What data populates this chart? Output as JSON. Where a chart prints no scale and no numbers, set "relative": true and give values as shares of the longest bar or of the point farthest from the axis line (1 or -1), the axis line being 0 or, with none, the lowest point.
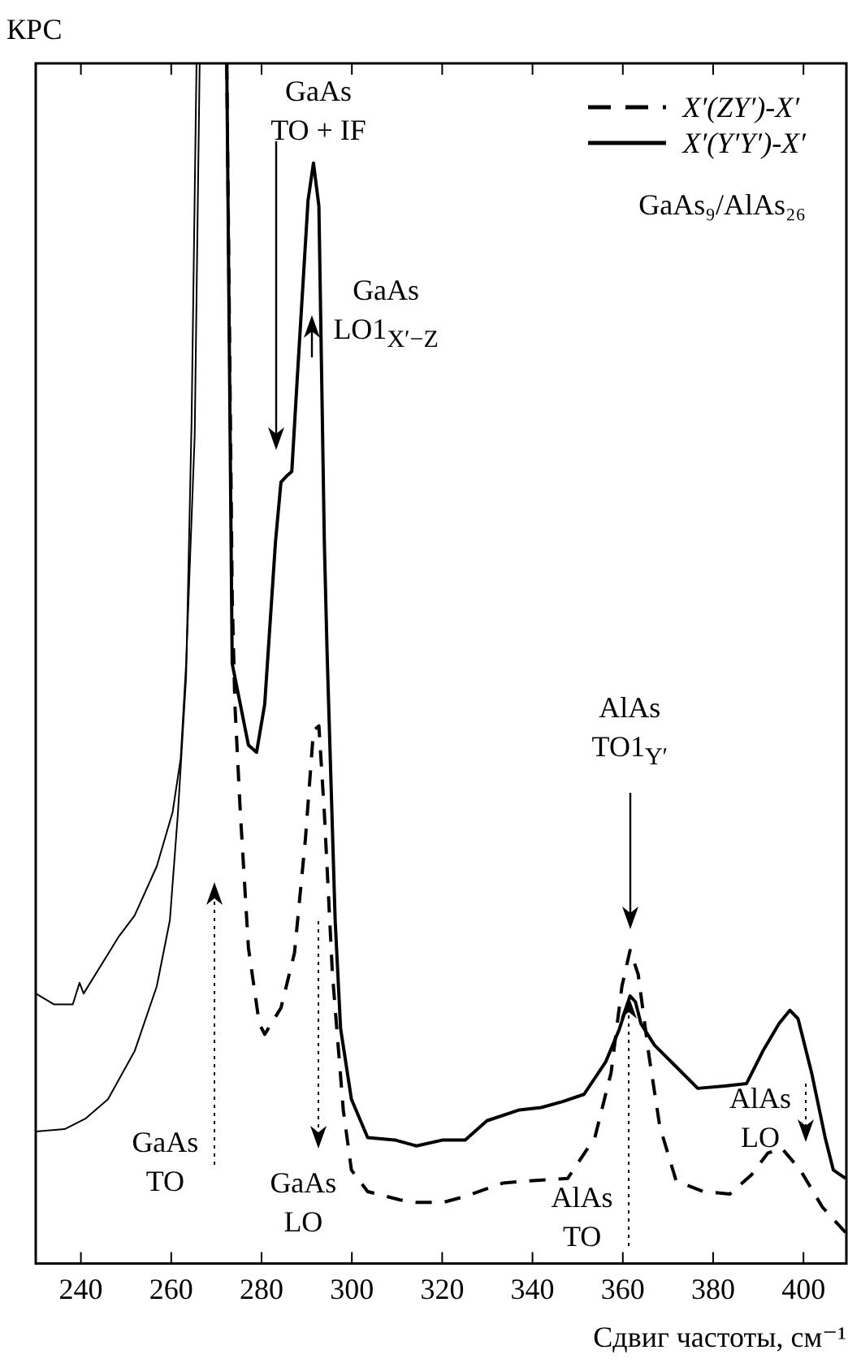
{
  "chart_data": {
    "type": "line",
    "relative": true,
    "xlabel": "Сдвиг частоты, см⁻¹",
    "ylabel": "КРС",
    "xlim": [
      230,
      409.5
    ],
    "xticks": [
      240,
      260,
      280,
      300,
      320,
      340,
      360,
      380,
      400
    ],
    "grid": false,
    "legend": "top right",
    "marker": "none",
    "series": [
      {
        "name": "X′(ZY′)-X′",
        "color": "#000000",
        "line_style": "dashed",
        "x": [
          272.3,
          273.5,
          274.1,
          275.3,
          277.1,
          279.5,
          280.7,
          284.3,
          287.3,
          289.7,
          291.5,
          292.7,
          293.9,
          295.7,
          298.1,
          299.9,
          303.5,
          310.7,
          314.3,
          320.2,
          325.1,
          333.4,
          339.4,
          347.8,
          353.8,
          357.4,
          359.8,
          361.6,
          363.4,
          365.8,
          368.2,
          371.8,
          377.8,
          383.7,
          388.5,
          392.1,
          395.2,
          399.3,
          404.2,
          409.3
        ],
        "values": [
          1.0,
          0.556,
          0.466,
          0.376,
          0.263,
          0.2,
          0.191,
          0.213,
          0.259,
          0.353,
          0.444,
          0.448,
          0.376,
          0.241,
          0.128,
          0.078,
          0.06,
          0.053,
          0.051,
          0.051,
          0.056,
          0.067,
          0.069,
          0.071,
          0.105,
          0.159,
          0.231,
          0.261,
          0.241,
          0.173,
          0.114,
          0.069,
          0.06,
          0.058,
          0.074,
          0.092,
          0.096,
          0.078,
          0.047,
          0.026
        ]
      },
      {
        "name": "X′(Y′Y′)-X′",
        "color": "#000000",
        "line_style": "solid",
        "x": [
          272.3,
          273.5,
          275.3,
          277.1,
          278.9,
          280.7,
          283.1,
          284.3,
          285.5,
          286.7,
          287.9,
          290.3,
          291.5,
          292.7,
          293.9,
          294.5,
          296.3,
          297.5,
          299.9,
          303.5,
          309.5,
          314.3,
          320.2,
          325.1,
          329.9,
          337.1,
          341.9,
          346.7,
          351.4,
          356.2,
          359.2,
          361.6,
          362.8,
          364,
          367,
          371.8,
          376.6,
          382.6,
          387.4,
          391,
          394.6,
          397,
          398.8,
          401.8,
          404.8,
          406.6,
          409.3
        ],
        "values": [
          1.0,
          0.5,
          0.466,
          0.432,
          0.426,
          0.466,
          0.602,
          0.651,
          0.656,
          0.66,
          0.737,
          0.886,
          0.917,
          0.881,
          0.602,
          0.511,
          0.286,
          0.196,
          0.137,
          0.105,
          0.103,
          0.098,
          0.103,
          0.103,
          0.119,
          0.128,
          0.13,
          0.135,
          0.141,
          0.168,
          0.195,
          0.223,
          0.218,
          0.2,
          0.182,
          0.164,
          0.146,
          0.148,
          0.15,
          0.177,
          0.2,
          0.211,
          0.204,
          0.159,
          0.105,
          0.078,
          0.071
        ]
      },
      {
        "color": "#000000",
        "line_style": "solid",
        "x": [
          230,
          234,
          238.2,
          239.7,
          240.6,
          244.7,
          248.3,
          251.9,
          256.8,
          260.3,
          262.1,
          263.3,
          265.2,
          266.3
        ],
        "values": [
          0.225,
          0.216,
          0.216,
          0.234,
          0.225,
          0.25,
          0.272,
          0.29,
          0.331,
          0.376,
          0.421,
          0.5,
          0.69,
          1.0
        ]
      },
      {
        "color": "#000000",
        "line_style": "solid",
        "x": [
          230,
          236.4,
          241.1,
          246,
          251.9,
          256.8,
          259.7,
          261.5,
          263.3,
          264.5,
          265.6
        ],
        "values": [
          0.11,
          0.112,
          0.121,
          0.137,
          0.177,
          0.231,
          0.286,
          0.376,
          0.489,
          0.7,
          1.0
        ]
      }
    ],
    "annotations": [
      "GaAs\nTO + IF",
      {
        "text": "GaAs\nLO1$_{X′−Z}$",
        "x": 291,
        "y": 0.79
      },
      "GaAs\nTO",
      "GaAs\nLO",
      "AlAs\nTO1$_{Y′}$",
      {
        "text": "AlAs\nTO",
        "x": 361.4,
        "y": 0.223
      },
      "AlAs\nLO",
      "GaAs₉/AlAs₂₆"
    ]
  }
}
